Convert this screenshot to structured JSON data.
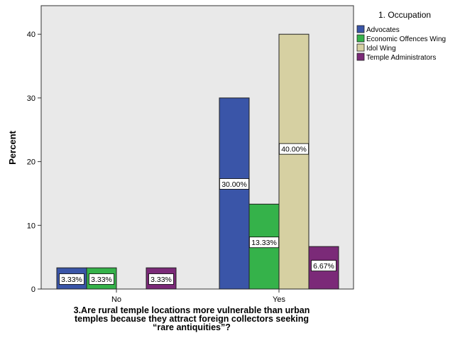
{
  "chart_data": {
    "type": "bar",
    "categories": [
      "No",
      "Yes"
    ],
    "series": [
      {
        "name": "Advocates",
        "color": "#3a55a8",
        "values": [
          3.33,
          30.0
        ],
        "labels": [
          "3.33%",
          "30.00%"
        ]
      },
      {
        "name": "Economic Offences Wing",
        "color": "#35b24a",
        "values": [
          3.33,
          13.33
        ],
        "labels": [
          "3.33%",
          "13.33%"
        ]
      },
      {
        "name": "Idol Wing",
        "color": "#d6d0a2",
        "values": [
          null,
          40.0
        ],
        "labels": [
          null,
          "40.00%"
        ]
      },
      {
        "name": "Temple Administrators",
        "color": "#7b2a78",
        "values": [
          3.33,
          6.67
        ],
        "labels": [
          "3.33%",
          "6.67%"
        ]
      }
    ],
    "ylabel": "Percent",
    "xlabel_lines": [
      "3.Are rural temple locations more vulnerable than urban",
      "temples because they attract foreign collectors seeking",
      "“rare antiquities”?"
    ],
    "legend_title": "1. Occupation",
    "legend_position": "right",
    "ylim": [
      0,
      45
    ],
    "yticks": [
      0,
      10,
      20,
      30,
      40
    ],
    "plot_background": "#e9e9e9",
    "grid": false
  }
}
